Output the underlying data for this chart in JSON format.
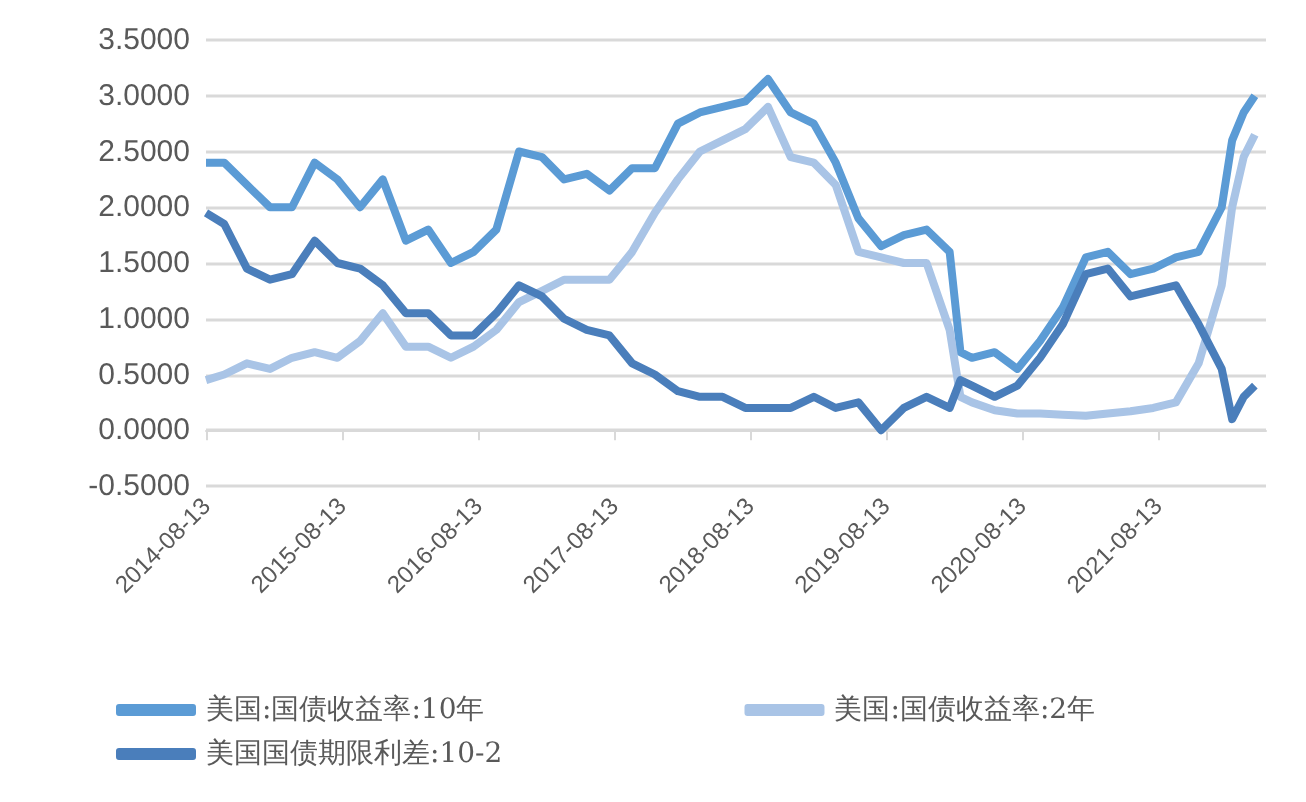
{
  "chart_data": {
    "type": "line",
    "x": [
      "2014-08-13",
      "2014-10",
      "2014-12",
      "2015-02",
      "2015-04",
      "2015-06",
      "2015-08",
      "2015-10",
      "2015-12",
      "2016-02",
      "2016-04",
      "2016-06",
      "2016-08",
      "2016-10",
      "2016-12",
      "2017-02",
      "2017-04",
      "2017-06",
      "2017-08",
      "2017-10",
      "2017-12",
      "2018-02",
      "2018-04",
      "2018-06",
      "2018-08",
      "2018-10",
      "2018-12",
      "2019-02",
      "2019-04",
      "2019-06",
      "2019-08",
      "2019-10",
      "2019-12",
      "2020-02",
      "2020-03",
      "2020-04",
      "2020-06",
      "2020-08",
      "2020-10",
      "2020-12",
      "2021-02",
      "2021-04",
      "2021-06",
      "2021-08",
      "2021-10",
      "2021-12",
      "2022-02",
      "2022-03",
      "2022-04",
      "2022-05"
    ],
    "series": [
      {
        "name": "美国:国债收益率:10年",
        "color": "#5b9bd5",
        "values": [
          2.4,
          2.4,
          2.2,
          2.0,
          2.0,
          2.4,
          2.25,
          2.0,
          2.25,
          1.7,
          1.8,
          1.5,
          1.6,
          1.8,
          2.5,
          2.45,
          2.25,
          2.3,
          2.15,
          2.35,
          2.35,
          2.75,
          2.85,
          2.9,
          2.95,
          3.15,
          2.85,
          2.75,
          2.4,
          1.9,
          1.65,
          1.75,
          1.8,
          1.6,
          0.7,
          0.65,
          0.7,
          0.55,
          0.8,
          1.1,
          1.55,
          1.6,
          1.4,
          1.45,
          1.55,
          1.6,
          2.0,
          2.6,
          2.85,
          3.0
        ]
      },
      {
        "name": "美国:国债收益率:2年",
        "color": "#a9c4e6",
        "values": [
          0.45,
          0.5,
          0.6,
          0.55,
          0.65,
          0.7,
          0.65,
          0.8,
          1.05,
          0.75,
          0.75,
          0.65,
          0.75,
          0.9,
          1.15,
          1.25,
          1.35,
          1.35,
          1.35,
          1.6,
          1.95,
          2.25,
          2.5,
          2.6,
          2.7,
          2.9,
          2.45,
          2.4,
          2.2,
          1.6,
          1.55,
          1.5,
          1.5,
          0.9,
          0.3,
          0.25,
          0.18,
          0.15,
          0.15,
          0.14,
          0.13,
          0.15,
          0.17,
          0.2,
          0.25,
          0.6,
          1.3,
          2.0,
          2.45,
          2.65
        ]
      },
      {
        "name": "美国国债期限利差:10-2",
        "color": "#4a7ebb",
        "values": [
          1.95,
          1.85,
          1.45,
          1.35,
          1.4,
          1.7,
          1.5,
          1.45,
          1.3,
          1.05,
          1.05,
          0.85,
          0.85,
          1.05,
          1.3,
          1.2,
          1.0,
          0.9,
          0.85,
          0.6,
          0.5,
          0.35,
          0.3,
          0.3,
          0.2,
          0.2,
          0.2,
          0.3,
          0.2,
          0.25,
          0.0,
          0.2,
          0.3,
          0.2,
          0.45,
          0.4,
          0.3,
          0.4,
          0.65,
          0.95,
          1.4,
          1.45,
          1.2,
          1.25,
          1.3,
          0.95,
          0.55,
          0.1,
          0.3,
          0.4
        ]
      }
    ],
    "xlim": [
      "2014-08-13",
      "2022-05-31"
    ],
    "xticks": [
      "2014-08-13",
      "2015-08-13",
      "2016-08-13",
      "2017-08-13",
      "2018-08-13",
      "2019-08-13",
      "2020-08-13",
      "2021-08-13"
    ],
    "ylim": [
      -0.5,
      3.5
    ],
    "yticks": [
      {
        "value": -0.5,
        "label": "-0.5000"
      },
      {
        "value": 0,
        "label": "0.0000"
      },
      {
        "value": 0.5,
        "label": "0.5000"
      },
      {
        "value": 1,
        "label": "1.0000"
      },
      {
        "value": 1.5,
        "label": "1.5000"
      },
      {
        "value": 2,
        "label": "2.0000"
      },
      {
        "value": 2.5,
        "label": "2.5000"
      },
      {
        "value": 3,
        "label": "3.0000"
      },
      {
        "value": 3.5,
        "label": "3.5000"
      }
    ],
    "grid": "y",
    "legend": "bottom",
    "marker": "none",
    "line_style": "solid"
  }
}
